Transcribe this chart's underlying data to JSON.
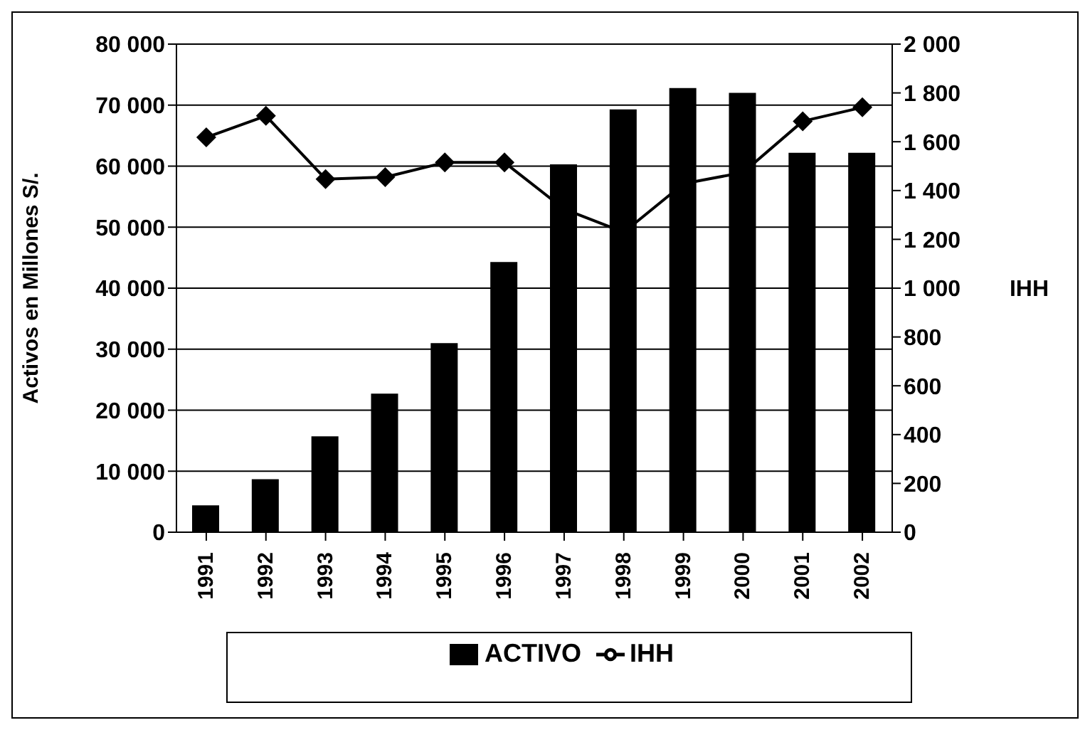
{
  "chart_data": {
    "type": "bar",
    "categories": [
      "1991",
      "1992",
      "1993",
      "1994",
      "1995",
      "1996",
      "1997",
      "1998",
      "1999",
      "2000",
      "2001",
      "2002"
    ],
    "series": [
      {
        "name": "ACTIVO",
        "color": "#000000",
        "values": [
          4400,
          8700,
          15700,
          22700,
          31000,
          44300,
          60300,
          69300,
          72800,
          72000,
          62200,
          62200
        ]
      },
      {
        "name": "IHH",
        "type": "line",
        "axis": "y2",
        "color": "#000000",
        "marker": "diamond",
        "values": [
          1618,
          1706,
          1447,
          1455,
          1515,
          1515,
          1324,
          1229,
          1428,
          1474,
          1684,
          1741
        ]
      }
    ],
    "ylabel": "Activos en Millones  S/.",
    "y2label": "IHH",
    "ylim": [
      0,
      80000
    ],
    "yticks": [
      {
        "value": 0,
        "label": "0"
      },
      {
        "value": 10000,
        "label": "10 000"
      },
      {
        "value": 20000,
        "label": "20 000"
      },
      {
        "value": 30000,
        "label": "30 000"
      },
      {
        "value": 40000,
        "label": "40 000"
      },
      {
        "value": 50000,
        "label": "50 000"
      },
      {
        "value": 60000,
        "label": "60 000"
      },
      {
        "value": 70000,
        "label": "70 000"
      },
      {
        "value": 80000,
        "label": "80 000"
      }
    ],
    "y2lim": [
      0,
      2000
    ],
    "y2ticks": [
      {
        "value": 0,
        "label": "0"
      },
      {
        "value": 200,
        "label": "200"
      },
      {
        "value": 400,
        "label": "400"
      },
      {
        "value": 600,
        "label": "600"
      },
      {
        "value": 800,
        "label": "800"
      },
      {
        "value": 1000,
        "label": "1 000"
      },
      {
        "value": 1200,
        "label": "1 200"
      },
      {
        "value": 1400,
        "label": "1 400"
      },
      {
        "value": 1600,
        "label": "1 600"
      },
      {
        "value": 1800,
        "label": "1 800"
      },
      {
        "value": 2000,
        "label": "2 000"
      }
    ],
    "grid": "y",
    "legend": "bottom"
  }
}
